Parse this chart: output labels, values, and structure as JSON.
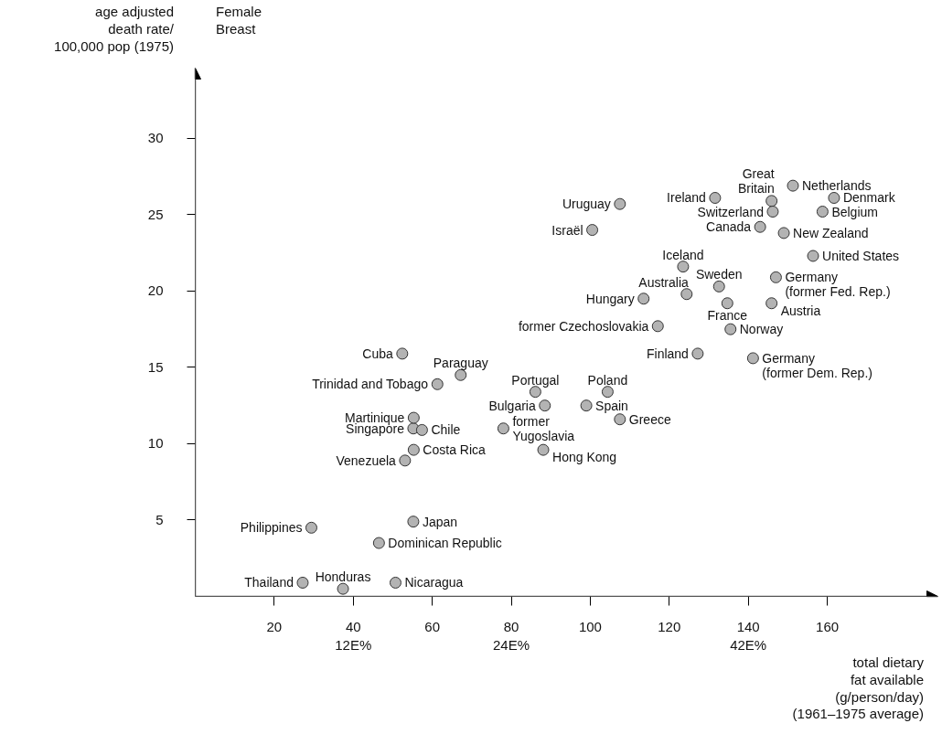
{
  "chart_data": {
    "type": "scatter",
    "title": "Female\nBreast",
    "ylabel": "age adjusted\ndeath rate/\n100,000 pop (1975)",
    "xlabel": "total dietary\nfat available\n(g/person/day)\n(1961–1975 average)",
    "x": [
      27.2,
      37.4,
      50.7,
      29.4,
      55.2,
      46.5,
      53.1,
      55.3,
      55.2,
      57.4,
      55.3,
      61.3,
      52.4,
      67.2,
      86.1,
      88.5,
      78.0,
      88.1,
      104.4,
      99.0,
      107.5,
      107.5,
      100.5,
      113.5,
      117.1,
      127.2,
      123.5,
      124.4,
      132.6,
      134.7,
      135.5,
      131.6,
      145.9,
      146.2,
      143.0,
      151.3,
      161.7,
      158.8,
      149.0,
      156.4,
      147.0,
      145.9,
      141.2
    ],
    "series": [
      {
        "color": "#b3b3b3",
        "values": [
          0.9,
          0.5,
          0.9,
          4.5,
          4.9,
          3.5,
          8.9,
          9.6,
          11.0,
          10.9,
          11.7,
          13.9,
          15.9,
          14.5,
          13.4,
          12.5,
          11.0,
          9.6,
          13.4,
          12.5,
          11.6,
          25.7,
          24.0,
          19.5,
          17.7,
          15.9,
          21.6,
          19.8,
          20.3,
          19.2,
          17.5,
          26.1,
          25.9,
          25.2,
          24.2,
          26.9,
          26.1,
          25.2,
          23.8,
          22.3,
          20.9,
          19.2,
          15.6
        ]
      }
    ],
    "annotations": [
      {
        "text": "Thailand",
        "x": 27.2,
        "y": 0.9
      },
      {
        "text": "Honduras",
        "x": 37.4,
        "y": 0.5
      },
      {
        "text": "Nicaragua",
        "x": 50.7,
        "y": 0.9
      },
      {
        "text": "Philippines",
        "x": 29.4,
        "y": 4.5
      },
      {
        "text": "Japan",
        "x": 55.2,
        "y": 4.9
      },
      {
        "text": "Dominican Republic",
        "x": 46.5,
        "y": 3.5
      },
      {
        "text": "Venezuela",
        "x": 53.1,
        "y": 8.9
      },
      {
        "text": "Costa Rica",
        "x": 55.3,
        "y": 9.6
      },
      {
        "text": "Singapore",
        "x": 55.2,
        "y": 11.0
      },
      {
        "text": "Chile",
        "x": 57.4,
        "y": 10.9
      },
      {
        "text": "Martinique",
        "x": 55.3,
        "y": 11.7
      },
      {
        "text": "Trinidad and Tobago",
        "x": 61.3,
        "y": 13.9
      },
      {
        "text": "Cuba",
        "x": 52.4,
        "y": 15.9
      },
      {
        "text": "Paraguay",
        "x": 67.2,
        "y": 14.5
      },
      {
        "text": "Portugal",
        "x": 86.1,
        "y": 13.4
      },
      {
        "text": "Bulgaria",
        "x": 88.5,
        "y": 12.5
      },
      {
        "text": "former\nYugoslavia",
        "x": 78.0,
        "y": 11.0
      },
      {
        "text": "Hong Kong",
        "x": 88.1,
        "y": 9.6
      },
      {
        "text": "Poland",
        "x": 104.4,
        "y": 13.4
      },
      {
        "text": "Spain",
        "x": 99.0,
        "y": 12.5
      },
      {
        "text": "Greece",
        "x": 107.5,
        "y": 11.6
      },
      {
        "text": "Uruguay",
        "x": 107.5,
        "y": 25.7
      },
      {
        "text": "Israël",
        "x": 100.5,
        "y": 24.0
      },
      {
        "text": "Hungary",
        "x": 113.5,
        "y": 19.5
      },
      {
        "text": "former Czechoslovakia",
        "x": 117.1,
        "y": 17.7
      },
      {
        "text": "Finland",
        "x": 127.2,
        "y": 15.9
      },
      {
        "text": "Iceland",
        "x": 123.5,
        "y": 21.6
      },
      {
        "text": "Australia",
        "x": 124.4,
        "y": 19.8
      },
      {
        "text": "Sweden",
        "x": 132.6,
        "y": 20.3
      },
      {
        "text": "France",
        "x": 134.7,
        "y": 19.2
      },
      {
        "text": "Norway",
        "x": 135.5,
        "y": 17.5
      },
      {
        "text": "Ireland",
        "x": 131.6,
        "y": 26.1
      },
      {
        "text": "Great\nBritain",
        "x": 145.9,
        "y": 25.9
      },
      {
        "text": "Switzerland",
        "x": 146.2,
        "y": 25.2
      },
      {
        "text": "Canada",
        "x": 143.0,
        "y": 24.2
      },
      {
        "text": "Netherlands",
        "x": 151.3,
        "y": 26.9
      },
      {
        "text": "Denmark",
        "x": 161.7,
        "y": 26.1
      },
      {
        "text": "Belgium",
        "x": 158.8,
        "y": 25.2
      },
      {
        "text": "New Zealand",
        "x": 149.0,
        "y": 23.8
      },
      {
        "text": "United States",
        "x": 156.4,
        "y": 22.3
      },
      {
        "text": "Germany\n(former Fed. Rep.)",
        "x": 147.0,
        "y": 20.9
      },
      {
        "text": "Austria",
        "x": 145.9,
        "y": 19.2
      },
      {
        "text": "Germany\n(former Dem. Rep.)",
        "x": 141.2,
        "y": 15.6
      }
    ],
    "xlim": [
      0,
      188
    ],
    "ylim": [
      0,
      34.6
    ],
    "xticks": [
      20,
      {
        "value": 40,
        "label": "40\n12E%"
      },
      60,
      {
        "value": 80,
        "label": "80\n24E%"
      },
      100,
      120,
      {
        "value": 140,
        "label": "140\n42E%"
      },
      160
    ],
    "yticks": [
      5,
      10,
      15,
      20,
      25,
      30
    ],
    "marker": "circle",
    "grid": false
  }
}
